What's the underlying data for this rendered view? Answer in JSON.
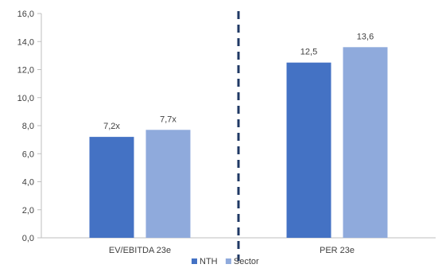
{
  "chart_data": {
    "type": "bar",
    "categories": [
      "EV/EBITDA 23e",
      "PER 23e"
    ],
    "series": [
      {
        "name": "NTH",
        "values": [
          7.2,
          12.5
        ],
        "labels": [
          "7,2x",
          "12,5"
        ],
        "color": "#4472c4"
      },
      {
        "name": "Sector",
        "values": [
          7.7,
          13.6
        ],
        "labels": [
          "7,7x",
          "13,6"
        ],
        "color": "#8faadc"
      }
    ],
    "ylim": [
      0,
      16
    ],
    "y_ticks": [
      0,
      2,
      4,
      6,
      8,
      10,
      12,
      14,
      16
    ],
    "y_tick_labels": [
      "0,0",
      "2,0",
      "4,0",
      "6,0",
      "8,0",
      "10,0",
      "12,0",
      "14,0",
      "16,0"
    ],
    "divider_color": "#1f3864",
    "legend_position": "bottom",
    "grid": false
  }
}
